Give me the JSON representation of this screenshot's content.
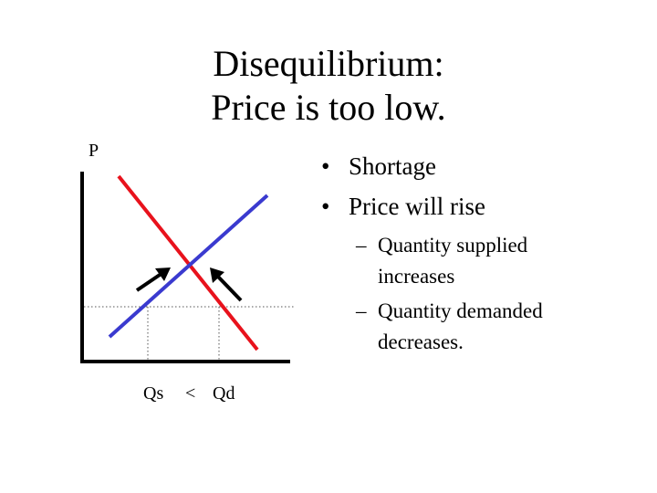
{
  "slide": {
    "title_line1": "Disequilibrium:",
    "title_line2": "Price is too low."
  },
  "diagram": {
    "y_axis_label": "P",
    "qs_label": "Qs",
    "comparison_symbol": "<",
    "qd_label": "Qd",
    "colors": {
      "demand": "#e8121c",
      "supply": "#3a3acf",
      "axes": "#000000",
      "dotted": "#555555"
    }
  },
  "bullets": [
    {
      "mark": "•",
      "text": "Shortage",
      "subitems": []
    },
    {
      "mark": "•",
      "text": "Price will rise",
      "subitems": [
        {
          "mark": "–",
          "line1": "Quantity supplied",
          "line2": "increases"
        },
        {
          "mark": "–",
          "line1": "Quantity demanded",
          "line2": "decreases."
        }
      ]
    }
  ]
}
